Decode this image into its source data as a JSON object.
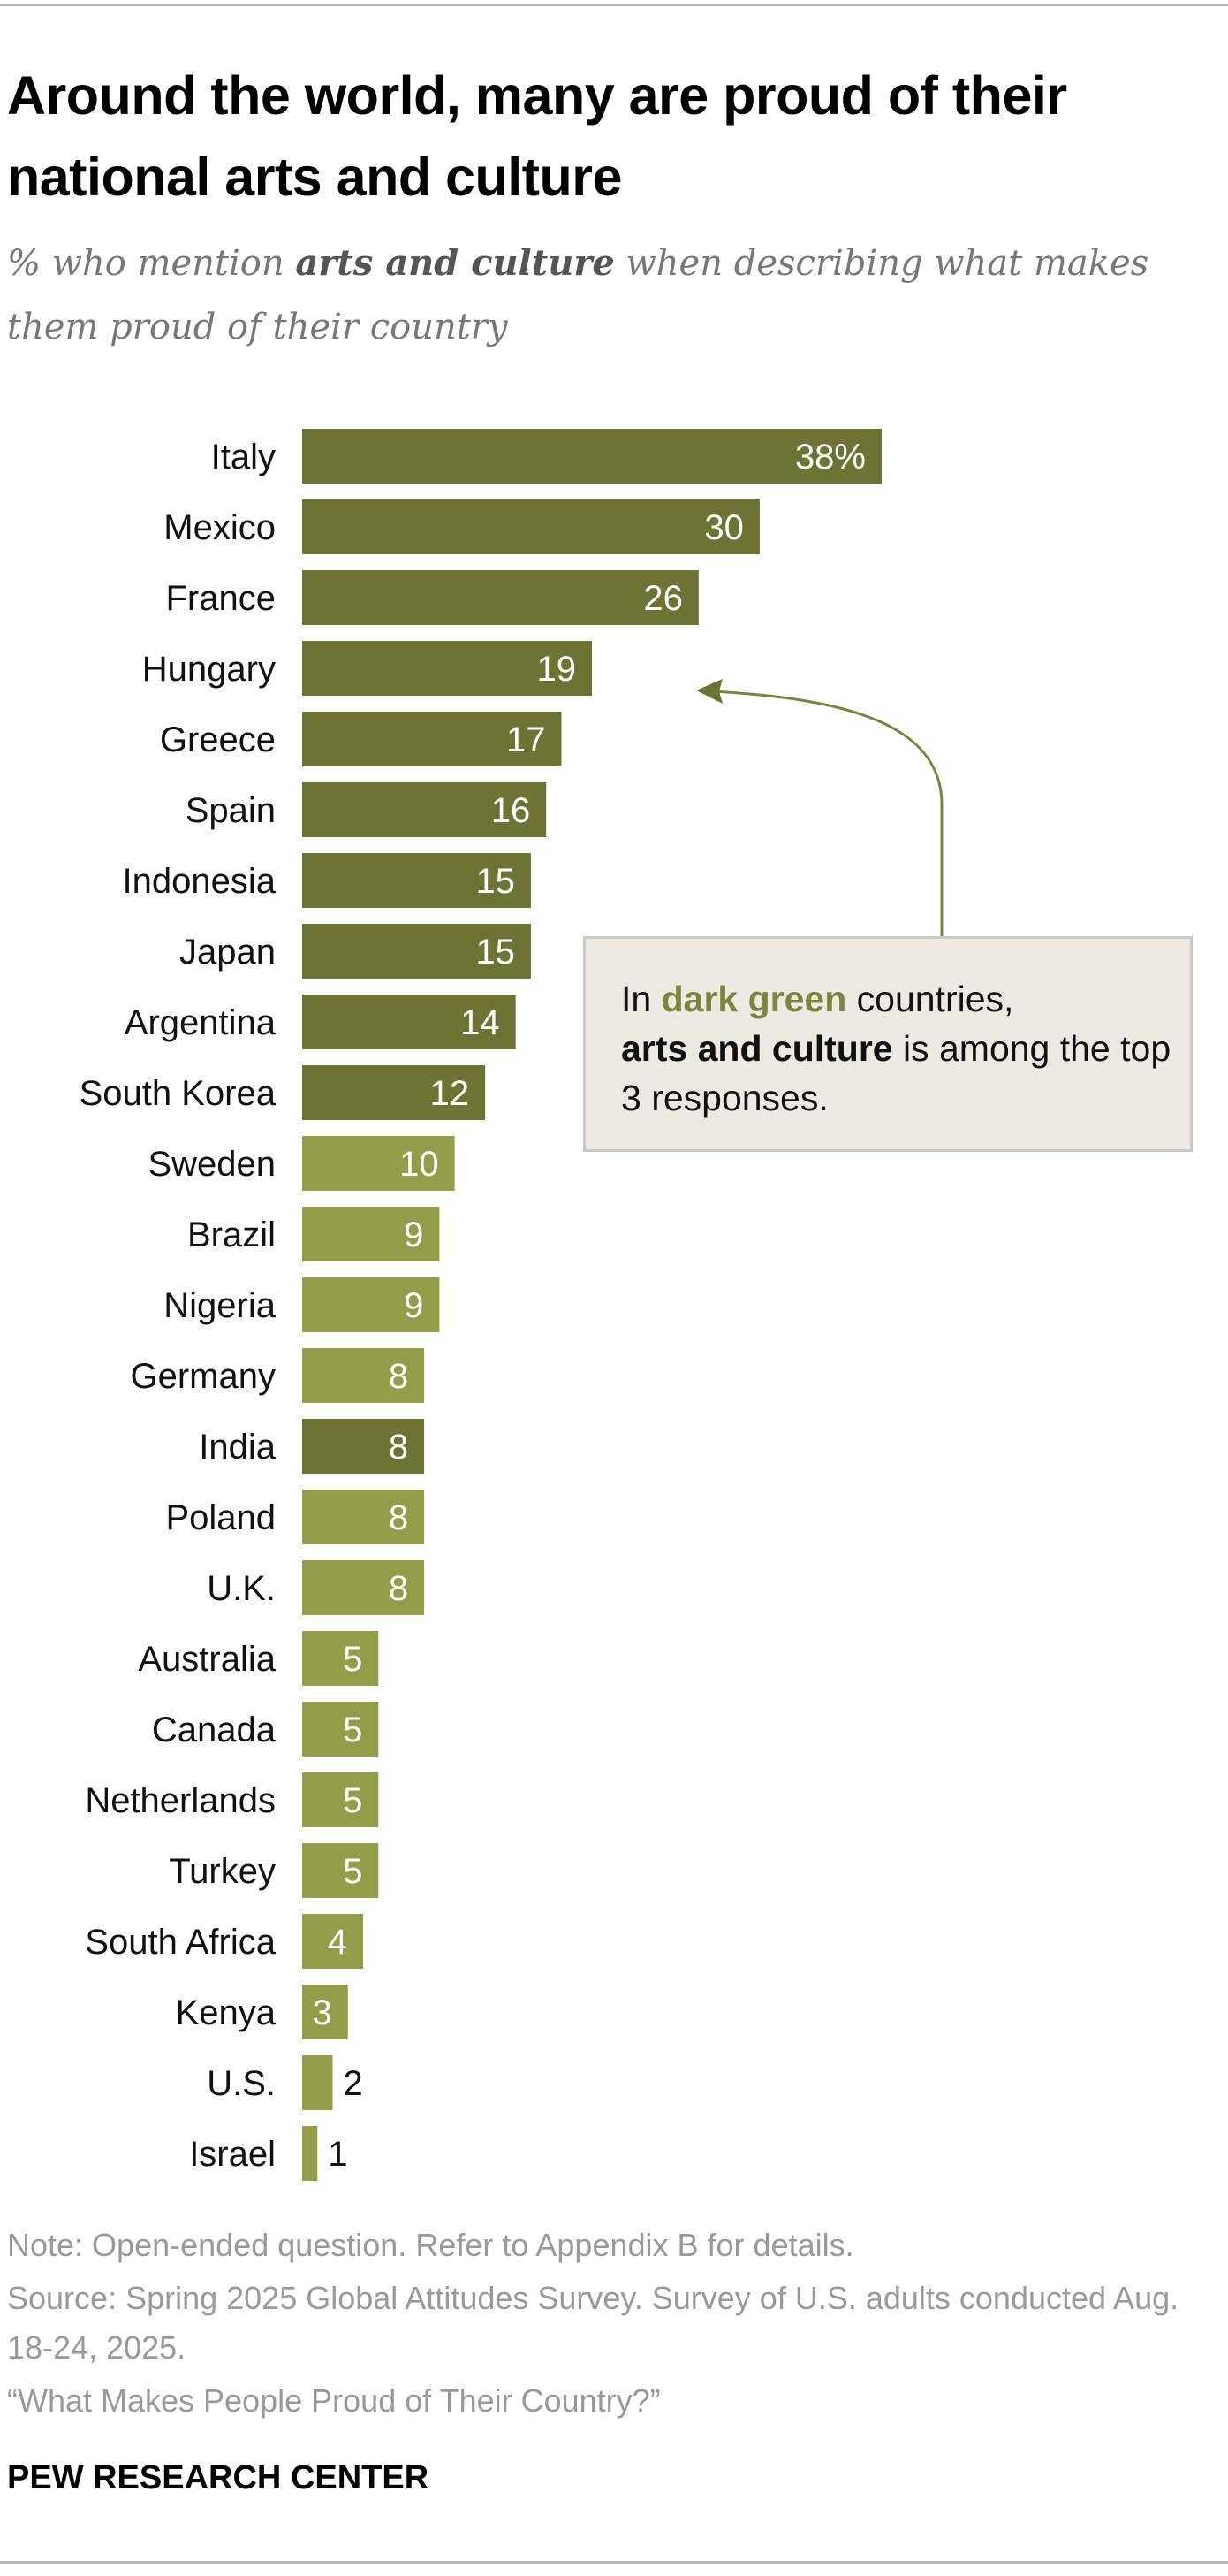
{
  "title": "Around the world, many are proud of their national arts and culture",
  "subtitle": {
    "pre": "% who mention ",
    "bold": "arts and culture",
    "post": " when describing what makes them proud of their country"
  },
  "callout": {
    "pre": "In ",
    "highlight": "dark green",
    "mid": " countries, ",
    "bold": "arts and culture",
    "post": " is among the top 3 responses."
  },
  "notes": {
    "note": "Note: Open-ended question. Refer to Appendix B for details.",
    "source": "Source: Spring 2025 Global Attitudes Survey. Survey of U.S. adults conducted Aug. 18-24, 2025.",
    "report": "“What Makes People Proud of Their Country?”"
  },
  "brand": "PEW RESEARCH CENTER",
  "colors": {
    "dark": "#6b7435",
    "light": "#939c48",
    "callout_text": "#7b8540"
  },
  "chart_data": {
    "type": "bar",
    "orientation": "horizontal",
    "title": "Around the world, many are proud of their national arts and culture",
    "xlabel": "",
    "ylabel": "",
    "xlim": [
      0,
      38
    ],
    "unit": "%",
    "categories": [
      "Italy",
      "Mexico",
      "France",
      "Hungary",
      "Greece",
      "Spain",
      "Indonesia",
      "Japan",
      "Argentina",
      "South Korea",
      "Sweden",
      "Brazil",
      "Nigeria",
      "Germany",
      "India",
      "Poland",
      "U.K.",
      "Australia",
      "Canada",
      "Netherlands",
      "Turkey",
      "South Africa",
      "Kenya",
      "U.S.",
      "Israel"
    ],
    "values": [
      38,
      30,
      26,
      19,
      17,
      16,
      15,
      15,
      14,
      12,
      10,
      9,
      9,
      8,
      8,
      8,
      8,
      5,
      5,
      5,
      5,
      4,
      3,
      2,
      1
    ],
    "top3": [
      true,
      true,
      true,
      true,
      true,
      true,
      true,
      true,
      true,
      true,
      false,
      false,
      false,
      false,
      true,
      false,
      false,
      false,
      false,
      false,
      false,
      false,
      false,
      false,
      false
    ],
    "labels": [
      "38%",
      "30",
      "26",
      "19",
      "17",
      "16",
      "15",
      "15",
      "14",
      "12",
      "10",
      "9",
      "9",
      "8",
      "8",
      "8",
      "8",
      "5",
      "5",
      "5",
      "5",
      "4",
      "3",
      "2",
      "1"
    ]
  }
}
